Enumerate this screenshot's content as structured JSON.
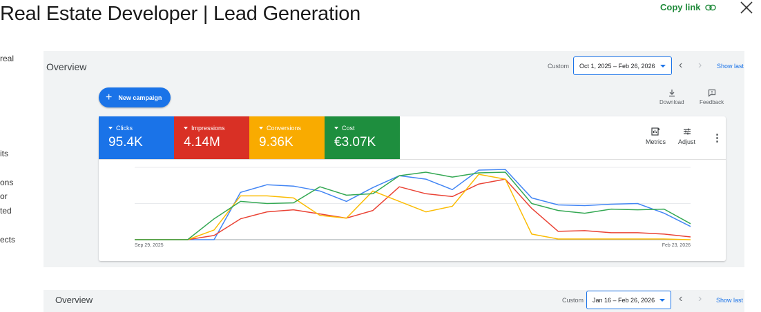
{
  "page_title": "Real Estate Developer | Lead Generation",
  "copy_link_label": "Copy link",
  "side_text": [
    "real",
    "its",
    "ons",
    "or",
    "ted",
    "ects"
  ],
  "overview": {
    "title": "Overview",
    "custom_label": "Custom",
    "date_range": "Oct 1, 2025 – Feb 26, 2026",
    "show_last": "Show last",
    "new_campaign_label": "New campaign",
    "download_label": "Download",
    "feedback_label": "Feedback",
    "metrics_label": "Metrics",
    "adjust_label": "Adjust",
    "cards": [
      {
        "label": "Clicks",
        "value": "95.4K",
        "color": "#1a73e8"
      },
      {
        "label": "Impressions",
        "value": "4.14M",
        "color": "#d93025"
      },
      {
        "label": "Conversions",
        "value": "9.36K",
        "color": "#f9ab00"
      },
      {
        "label": "Cost",
        "value": "€3.07K",
        "color": "#1e8e3e"
      }
    ]
  },
  "overview2": {
    "title": "Overview",
    "custom_label": "Custom",
    "date_range": "Jan 16 – Feb 26, 2026",
    "show_last": "Show last"
  },
  "chart_data": {
    "type": "line",
    "x_start_label": "Sep 29, 2025",
    "x_end_label": "Feb 23, 2026",
    "ylim": [
      0,
      100
    ],
    "grid": true,
    "series": [
      {
        "color": "#4285f4",
        "values": [
          0,
          0,
          0,
          0,
          68,
          79,
          77,
          70,
          55,
          75,
          92,
          87,
          72,
          100,
          101,
          60,
          50,
          49,
          51,
          52,
          38,
          19
        ]
      },
      {
        "color": "#ea4335",
        "values": [
          0,
          0,
          0,
          6,
          30,
          40,
          43,
          37,
          31,
          42,
          76,
          66,
          62,
          80,
          87,
          45,
          12,
          13,
          10,
          10,
          8,
          4
        ]
      },
      {
        "color": "#fbbc04",
        "values": [
          0,
          0,
          0,
          14,
          63,
          63,
          60,
          35,
          31,
          70,
          55,
          40,
          48,
          94,
          87,
          8,
          1,
          1,
          1,
          1,
          1,
          0
        ]
      },
      {
        "color": "#34a853",
        "values": [
          0,
          0,
          0,
          30,
          55,
          52,
          53,
          76,
          64,
          66,
          92,
          97,
          90,
          96,
          97,
          52,
          42,
          38,
          44,
          43,
          44,
          23
        ]
      }
    ]
  }
}
